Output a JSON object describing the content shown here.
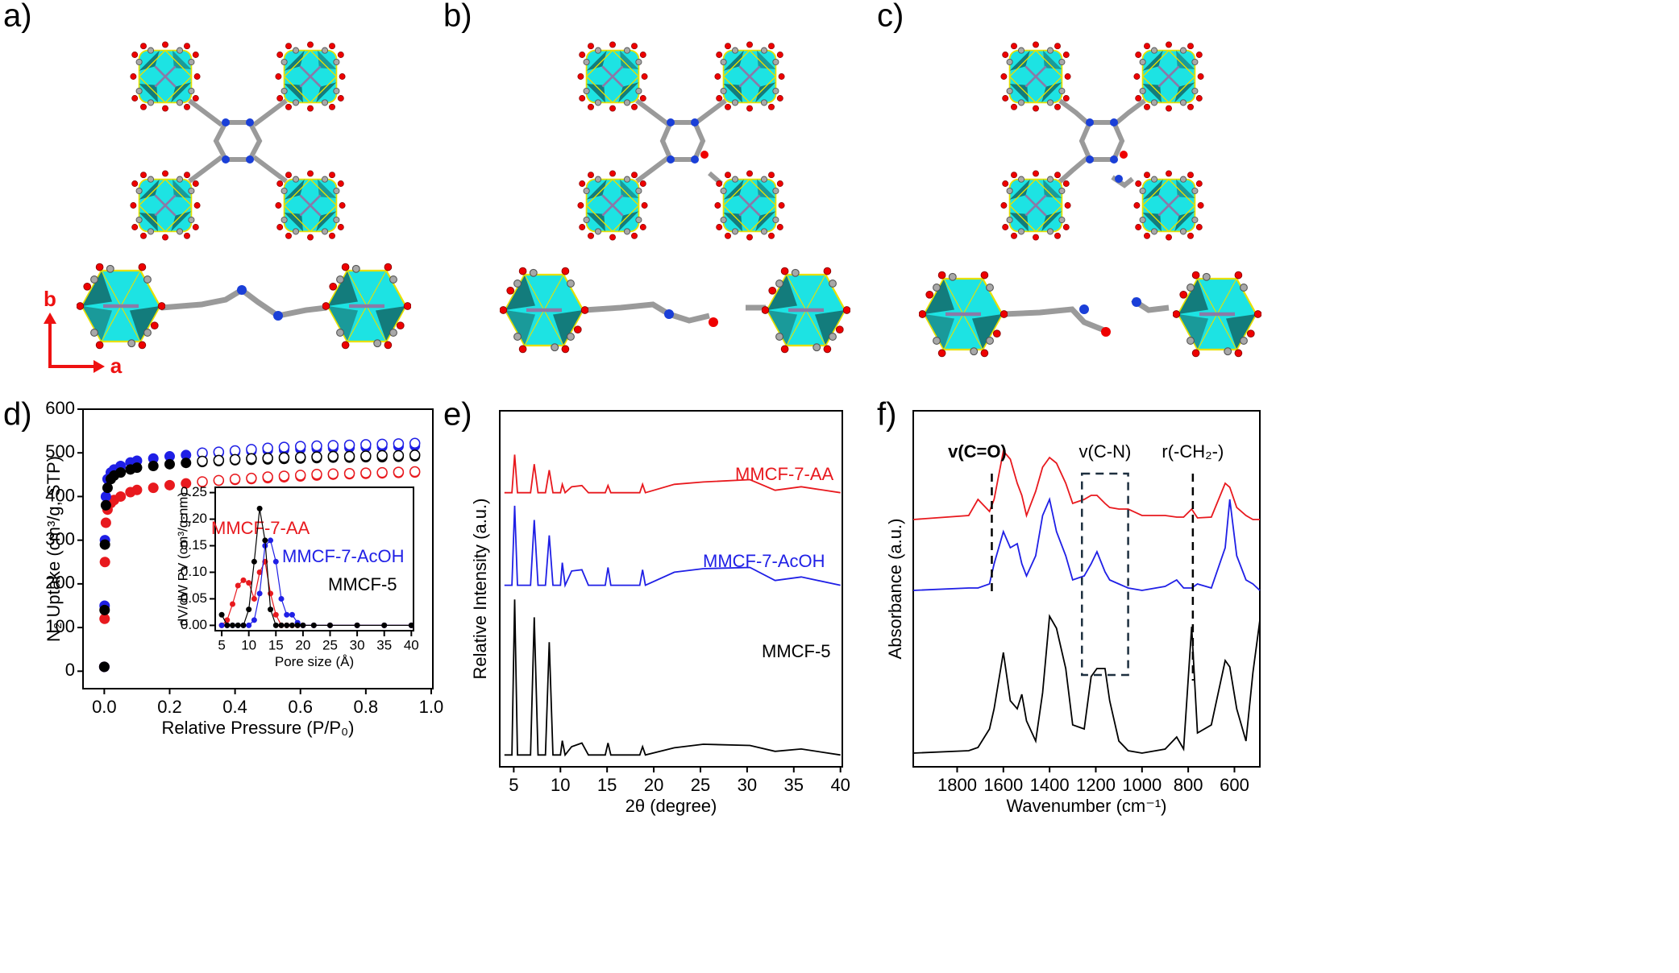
{
  "panels": {
    "a": "a)",
    "b": "b)",
    "c": "c)",
    "d": "d)",
    "e": "e)",
    "f": "f)"
  },
  "axes_labels": {
    "b": "b",
    "a": "a"
  },
  "chart_data": [
    {
      "type": "scatter",
      "xlabel": "Relative Pressure (P/P₀)",
      "ylabel": "N₂ Uptake (cm³/g, STP)",
      "xlim": [
        -0.065,
        1.005
      ],
      "ylim": [
        -40,
        600
      ],
      "xticks": [
        {
          "value": 0,
          "label": "0.0"
        },
        0.2,
        0.4,
        0.6,
        0.8,
        {
          "value": 1,
          "label": "1.0"
        }
      ],
      "yticks": [
        0,
        100,
        200,
        300,
        400,
        500,
        600
      ],
      "x": [
        0,
        0.001,
        0.002,
        0.005,
        0.01,
        0.02,
        0.03,
        0.05,
        0.08,
        0.1,
        0.15,
        0.2,
        0.25,
        0.3,
        0.35,
        0.4,
        0.45,
        0.5,
        0.55,
        0.6,
        0.65,
        0.7,
        0.75,
        0.8,
        0.85,
        0.9,
        0.95
      ],
      "desorption_x": [
        0.3,
        0.35,
        0.4,
        0.45,
        0.5,
        0.55,
        0.6,
        0.65,
        0.7,
        0.75,
        0.8,
        0.85,
        0.9,
        0.95
      ],
      "series": [
        {
          "color": "#e8191e",
          "values": [
            10,
            120,
            250,
            340,
            370,
            385,
            392,
            400,
            410,
            415,
            420,
            426,
            430,
            433,
            436,
            438,
            440,
            442,
            444,
            446,
            448,
            450,
            451,
            452,
            453,
            454,
            455
          ],
          "desorption": [
            434,
            437,
            440,
            442,
            445,
            447,
            449,
            451,
            452,
            453,
            454,
            455,
            456,
            457
          ]
        },
        {
          "color": "#1f1fe6",
          "values": [
            10,
            150,
            300,
            400,
            440,
            455,
            462,
            470,
            478,
            482,
            487,
            492,
            495,
            498,
            500,
            502,
            504,
            506,
            507,
            509,
            510,
            511,
            512,
            513,
            514,
            515,
            516
          ],
          "desorption": [
            500,
            502,
            505,
            508,
            511,
            513,
            515,
            516,
            517,
            518,
            519,
            520,
            521,
            522
          ]
        },
        {
          "color": "#000000",
          "values": [
            10,
            140,
            290,
            380,
            420,
            440,
            448,
            455,
            462,
            466,
            470,
            474,
            477,
            479,
            481,
            483,
            484,
            485,
            486,
            487,
            488,
            489,
            489,
            490,
            490,
            491,
            492
          ],
          "desorption": [
            481,
            483,
            485,
            487,
            488,
            489,
            490,
            491,
            492,
            492,
            493,
            494,
            494,
            495
          ]
        }
      ]
    },
    {
      "type": "line",
      "markers": true,
      "xlabel": "Pore size (Å)",
      "ylabel": "dV/dW PV (cm³/g·nm)",
      "xlim": [
        3.8,
        40.4
      ],
      "ylim": [
        -0.01,
        0.26
      ],
      "xticks": [
        5,
        10,
        15,
        20,
        25,
        30,
        35,
        40
      ],
      "yticks": [
        {
          "value": 0,
          "label": "0.00"
        },
        0.05,
        {
          "value": 0.1,
          "label": "0.10"
        },
        0.15,
        {
          "value": 0.2,
          "label": "0.20"
        },
        0.25
      ],
      "x": [
        5,
        6,
        7,
        8,
        9,
        10,
        11,
        12,
        13,
        14,
        15,
        16,
        17,
        18,
        19,
        20,
        22,
        25,
        30,
        35,
        40
      ],
      "series": [
        {
          "name": "MMCF-7-AA",
          "color": "#e8191e",
          "values": [
            0,
            0.01,
            0.04,
            0.075,
            0.085,
            0.08,
            0.05,
            0.1,
            0.12,
            0.06,
            0.02,
            0,
            0,
            0,
            0,
            0,
            0,
            0,
            0,
            0,
            0
          ]
        },
        {
          "name": "MMCF-7-AcOH",
          "color": "#1f1fe6",
          "values": [
            0,
            0,
            0,
            0,
            0,
            0,
            0.01,
            0.06,
            0.15,
            0.16,
            0.12,
            0.05,
            0.02,
            0.02,
            0.005,
            0,
            0,
            0,
            0,
            0,
            0
          ]
        },
        {
          "name": "MMCF-5",
          "color": "#000000",
          "values": [
            0.02,
            0,
            0,
            0,
            0,
            0.03,
            0.12,
            0.22,
            0.16,
            0.03,
            0,
            0,
            0,
            0,
            0,
            0,
            0,
            0,
            0,
            0,
            0
          ]
        }
      ]
    },
    {
      "type": "line",
      "xlabel": "2θ (degree)",
      "ylabel": "Relative Intensity (a.u.)",
      "xlim": [
        3.5,
        40.2
      ],
      "ylim": [
        0,
        3
      ],
      "xticks": [
        5,
        10,
        15,
        20,
        25,
        30,
        35,
        40
      ],
      "x": [
        4,
        4.8,
        5.1,
        5.4,
        6.8,
        7.2,
        7.6,
        8.4,
        8.8,
        9.2,
        10,
        10.2,
        10.5,
        11.2,
        12.3,
        13,
        14.8,
        15.1,
        15.4,
        18.5,
        18.8,
        19.1,
        22.2,
        25.3,
        30.3,
        33,
        35.8,
        40
      ],
      "series": [
        {
          "name": "MMCF-7-AA",
          "color": "#e8191e",
          "values": [
            2.31,
            2.31,
            2.63,
            2.31,
            2.31,
            2.55,
            2.31,
            2.31,
            2.5,
            2.31,
            2.31,
            2.38,
            2.31,
            2.36,
            2.37,
            2.31,
            2.31,
            2.37,
            2.31,
            2.31,
            2.38,
            2.31,
            2.38,
            2.4,
            2.42,
            2.33,
            2.36,
            2.31
          ]
        },
        {
          "name": "MMCF-7-AcOH",
          "color": "#1f1fe6",
          "values": [
            1.53,
            1.53,
            2.2,
            1.53,
            1.53,
            2.08,
            1.53,
            1.53,
            1.95,
            1.53,
            1.53,
            1.72,
            1.53,
            1.65,
            1.66,
            1.53,
            1.53,
            1.68,
            1.53,
            1.53,
            1.66,
            1.53,
            1.64,
            1.67,
            1.68,
            1.57,
            1.6,
            1.53
          ]
        },
        {
          "name": "MMCF-5",
          "color": "#000000",
          "values": [
            0.1,
            0.1,
            1.41,
            0.1,
            0.1,
            1.26,
            0.1,
            0.1,
            1.05,
            0.1,
            0.1,
            0.22,
            0.1,
            0.17,
            0.2,
            0.1,
            0.1,
            0.2,
            0.1,
            0.1,
            0.17,
            0.1,
            0.16,
            0.19,
            0.18,
            0.13,
            0.15,
            0.1
          ]
        }
      ]
    },
    {
      "type": "line",
      "xlabel": "Wavenumber (cm⁻¹)",
      "ylabel": "Absorbance (a.u.)",
      "xlim": [
        1990,
        490
      ],
      "ylim": [
        0,
        442
      ],
      "xticks": [
        1800,
        1600,
        1400,
        1200,
        1000,
        800,
        600
      ],
      "x": [
        1990,
        1750,
        1710,
        1660,
        1640,
        1600,
        1570,
        1540,
        1520,
        1500,
        1460,
        1430,
        1400,
        1370,
        1330,
        1300,
        1250,
        1220,
        1195,
        1160,
        1140,
        1100,
        1060,
        1000,
        900,
        850,
        820,
        785,
        760,
        700,
        640,
        620,
        590,
        550,
        520,
        490
      ],
      "series": [
        {
          "color": "#e8191e",
          "values": [
            307,
            312,
            332,
            317,
            332,
            392,
            382,
            352,
            337,
            312,
            342,
            372,
            384,
            377,
            352,
            327,
            332,
            337,
            337,
            327,
            322,
            320,
            320,
            312,
            312,
            310,
            310,
            320,
            309,
            310,
            352,
            347,
            322,
            312,
            307,
            307
          ]
        },
        {
          "color": "#1f1fe6",
          "values": [
            219,
            222,
            222,
            227,
            252,
            292,
            272,
            277,
            252,
            237,
            262,
            312,
            332,
            292,
            262,
            232,
            237,
            252,
            267,
            242,
            232,
            227,
            222,
            219,
            224,
            232,
            222,
            222,
            227,
            222,
            272,
            332,
            262,
            232,
            227,
            219
          ]
        },
        {
          "color": "#000000",
          "values": [
            17,
            20,
            24,
            47,
            72,
            142,
            82,
            72,
            90,
            57,
            32,
            92,
            187,
            172,
            122,
            52,
            47,
            112,
            122,
            122,
            82,
            32,
            20,
            17,
            22,
            37,
            22,
            174,
            42,
            52,
            132,
            124,
            72,
            32,
            117,
            182
          ]
        }
      ],
      "annotations": [
        {
          "text": "v(C=O)",
          "x": 1650
        },
        {
          "text": "v(C-N)",
          "x": [
            1260,
            1060
          ]
        },
        {
          "text": "r(-CH₂-)",
          "x": 780
        }
      ]
    }
  ]
}
